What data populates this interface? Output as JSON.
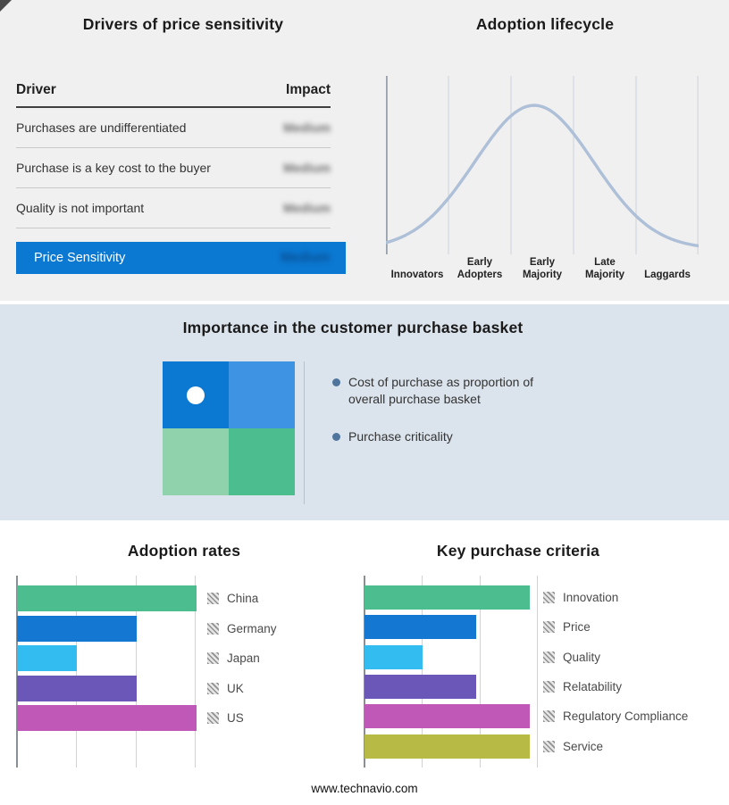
{
  "page": {
    "footer_url": "www.technavio.com",
    "top_section_bg": "#f0f0f0",
    "mid_section_bg": "#dbe3ec"
  },
  "drivers": {
    "title": "Drivers of price sensitivity",
    "columns": {
      "driver": "Driver",
      "impact": "Impact"
    },
    "rows": [
      {
        "driver": "Purchases are undifferentiated",
        "impact": "Medium"
      },
      {
        "driver": "Purchase is a key cost to the buyer",
        "impact": "Medium"
      },
      {
        "driver": "Quality is not important",
        "impact": "Medium"
      }
    ],
    "highlight": {
      "driver": "Price Sensitivity",
      "impact": "Medium"
    },
    "highlight_color": "#0b78d1",
    "impact_values_obscured": true
  },
  "lifecycle": {
    "title": "Adoption lifecycle",
    "stages": [
      "Innovators",
      "Early Adopters",
      "Early Majority",
      "Late Majority",
      "Laggards"
    ]
  },
  "basket": {
    "title": "Importance in the customer purchase basket",
    "bullets": [
      "Cost of purchase as proportion of overall purchase basket",
      "Purchase criticality"
    ],
    "quadrant_colors": [
      "#0b78d1",
      "#3e93e2",
      "#8fd2ac",
      "#4cbd8e"
    ],
    "bullet_color": "#4f759c"
  },
  "chart_data": [
    {
      "name": "adoption-lifecycle",
      "type": "area",
      "title": "Adoption lifecycle",
      "categories": [
        "Innovators",
        "Early Adopters",
        "Early Majority",
        "Late Majority",
        "Laggards"
      ],
      "curve": {
        "shape": "bell",
        "mu": 0.474,
        "sigma": 0.19,
        "color": "#aebfd8"
      },
      "xlabel": "",
      "ylabel": "",
      "grid": "vertical-category-dividers",
      "legend": "none"
    },
    {
      "name": "adoption-rates",
      "type": "bar",
      "orientation": "horizontal",
      "title": "Adoption rates",
      "categories": [
        "China",
        "Germany",
        "Japan",
        "UK",
        "US"
      ],
      "values": [
        3.0,
        2.0,
        1.0,
        2.0,
        3.0
      ],
      "xlim": [
        0,
        3
      ],
      "axis_tick_labels": "none",
      "colors": [
        "#4cbd8e",
        "#1478d2",
        "#33bcf0",
        "#6a57b8",
        "#bf58b6"
      ],
      "legend_position": "right"
    },
    {
      "name": "key-purchase-criteria",
      "type": "bar",
      "orientation": "horizontal",
      "title": "Key purchase criteria",
      "categories": [
        "Innovation",
        "Price",
        "Quality",
        "Relatability",
        "Regulatory Compliance",
        "Service"
      ],
      "values": [
        2.85,
        1.92,
        1.0,
        1.92,
        2.85,
        2.85
      ],
      "xlim": [
        0,
        3
      ],
      "axis_tick_labels": "none",
      "colors": [
        "#4cbd8e",
        "#1478d2",
        "#33bcf0",
        "#6a57b8",
        "#bf58b6",
        "#b8ba46"
      ],
      "legend_position": "right"
    }
  ]
}
